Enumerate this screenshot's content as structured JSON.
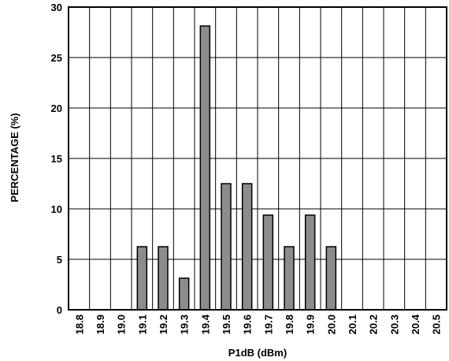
{
  "chart_data": {
    "type": "bar",
    "title": "",
    "xlabel": "P1dB (dBm)",
    "ylabel": "PERCENTAGE (%)",
    "ylim": [
      0,
      30
    ],
    "yticks": [
      "0",
      "5",
      "10",
      "15",
      "20",
      "25",
      "30"
    ],
    "categories": [
      "18.8",
      "18.9",
      "19.0",
      "19.1",
      "19.2",
      "19.3",
      "19.4",
      "19.5",
      "19.6",
      "19.7",
      "19.8",
      "19.9",
      "20.0",
      "20.1",
      "20.2",
      "20.3",
      "20.4",
      "20.5"
    ],
    "values": [
      0,
      0,
      0,
      6.25,
      6.25,
      3.13,
      28.13,
      12.5,
      12.5,
      9.38,
      6.25,
      9.38,
      6.25,
      0,
      0,
      0,
      0,
      0
    ],
    "grid": true,
    "colors": {
      "bar_fill": "#8c8c8c",
      "bar_stroke": "#000000",
      "grid": "#000000",
      "text": "#000000"
    }
  }
}
